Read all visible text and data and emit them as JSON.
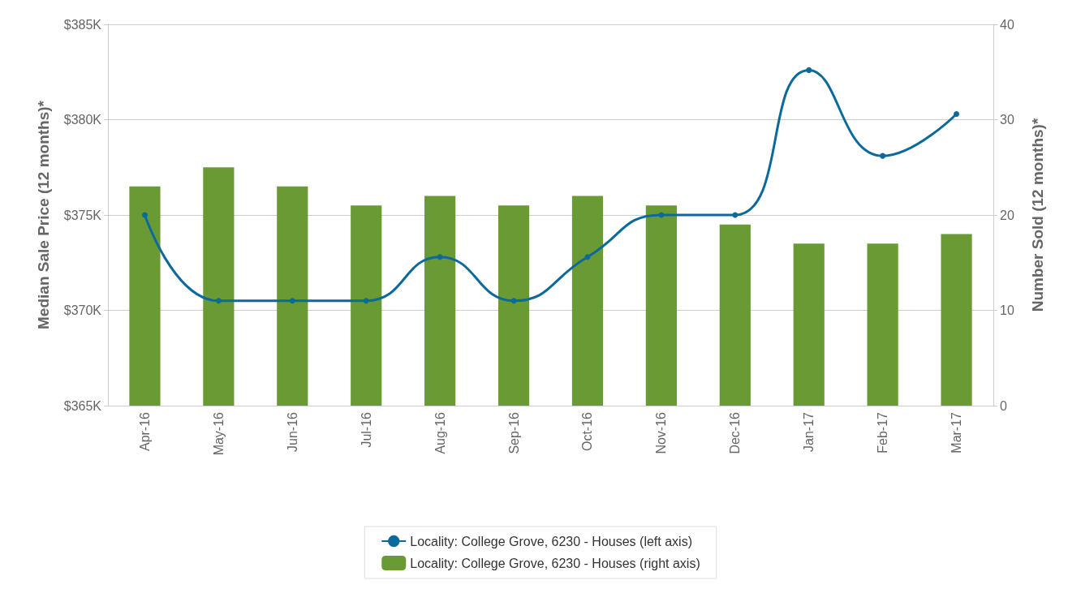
{
  "chart_data": {
    "type": "bar",
    "categories": [
      "Apr-16",
      "May-16",
      "Jun-16",
      "Jul-16",
      "Aug-16",
      "Sep-16",
      "Oct-16",
      "Nov-16",
      "Dec-16",
      "Jan-17",
      "Feb-17",
      "Mar-17"
    ],
    "ylabel": "Median Sale Price (12 months)*",
    "y2label": "Number Sold (12 months)*",
    "ylim": [
      365,
      385
    ],
    "yticks": [
      {
        "value": 365,
        "label": "$365K"
      },
      {
        "value": 370,
        "label": "$370K"
      },
      {
        "value": 375,
        "label": "$375K"
      },
      {
        "value": 380,
        "label": "$380K"
      },
      {
        "value": 385,
        "label": "$385K"
      }
    ],
    "y2lim": [
      0,
      40
    ],
    "y2ticks": [
      0,
      10,
      20,
      30,
      40
    ],
    "grid": "y",
    "legend": "bottom",
    "marker": "circle",
    "line_style": "solid",
    "series": [
      {
        "name": "Locality: College Grove, 6230 - Houses (left axis)",
        "type": "line",
        "color": "#0b6a9b",
        "values": [
          375,
          370.5,
          370.5,
          370.5,
          372.8,
          370.5,
          372.8,
          375,
          375,
          382.6,
          378.1,
          380.3
        ]
      },
      {
        "name": "Locality: College Grove, 6230 - Houses (right axis)",
        "axis": "y2",
        "color": "#6a9a34",
        "values": [
          23,
          25,
          23,
          21,
          22,
          21,
          22,
          21,
          19,
          17,
          17,
          18
        ]
      }
    ]
  }
}
